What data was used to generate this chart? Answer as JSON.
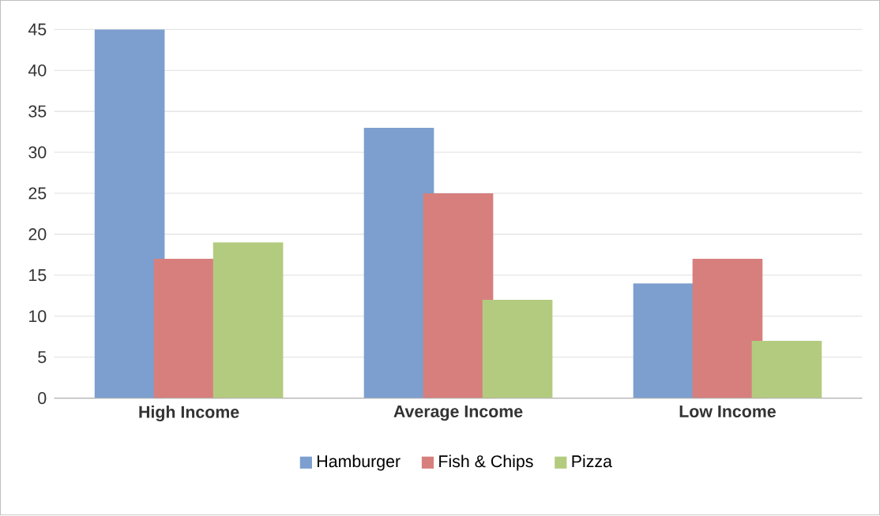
{
  "chart_data": {
    "type": "bar",
    "categories": [
      "High Income",
      "Average Income",
      "Low Income"
    ],
    "series": [
      {
        "name": "Hamburger",
        "color": "#7c9fcf",
        "values": [
          45,
          33,
          14
        ]
      },
      {
        "name": "Fish & Chips",
        "color": "#d77f7d",
        "values": [
          17,
          25,
          17
        ]
      },
      {
        "name": "Pizza",
        "color": "#b3cb7f",
        "values": [
          19,
          12,
          7
        ]
      }
    ],
    "ylim": [
      0,
      45
    ],
    "yticks": [
      0,
      5,
      10,
      15,
      20,
      25,
      30,
      35,
      40,
      45
    ],
    "grid": "y",
    "legend": "bottom"
  }
}
